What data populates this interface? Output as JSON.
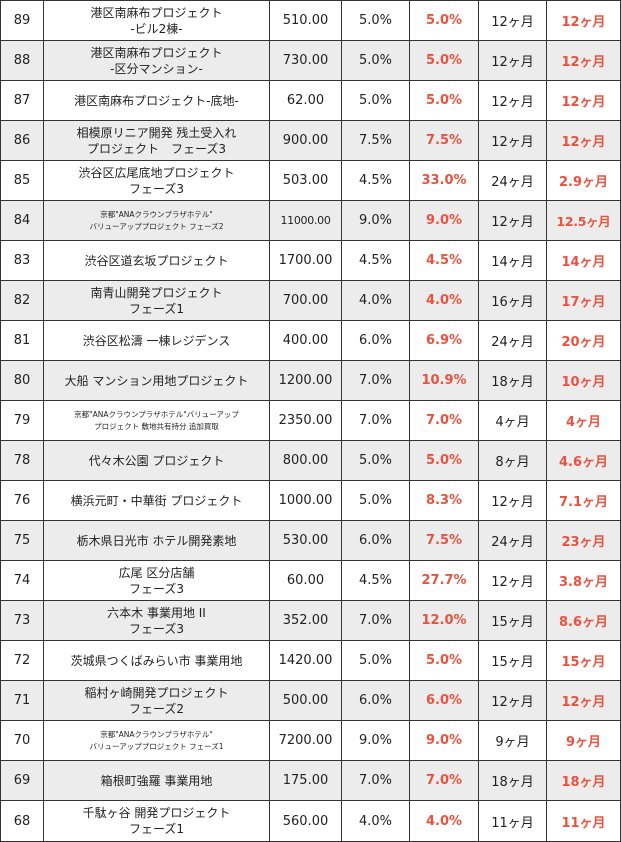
{
  "rows": [
    {
      "no": "89",
      "name": [
        "港区南麻布プロジェクト",
        "-ビル2棟-"
      ],
      "amount": "510.00",
      "rate": "5.0%",
      "yield": "5.0%",
      "term": "12ヶ月",
      "period": "12ヶ月",
      "shaded": false
    },
    {
      "no": "88",
      "name": [
        "港区南麻布プロジェクト",
        "-区分マンション-"
      ],
      "amount": "730.00",
      "rate": "5.0%",
      "yield": "5.0%",
      "term": "12ヶ月",
      "period": "12ヶ月",
      "shaded": true
    },
    {
      "no": "87",
      "name": [
        "港区南麻布プロジェクト-底地-"
      ],
      "amount": "62.00",
      "rate": "5.0%",
      "yield": "5.0%",
      "term": "12ヶ月",
      "period": "12ヶ月",
      "shaded": false
    },
    {
      "no": "86",
      "name": [
        "相模原リニア開発 残土受入れ",
        "プロジェクト　フェーズ3"
      ],
      "amount": "900.00",
      "rate": "7.5%",
      "yield": "7.5%",
      "term": "12ヶ月",
      "period": "12ヶ月",
      "shaded": true
    },
    {
      "no": "85",
      "name": [
        "渋谷区広尾底地プロジェクト",
        "フェーズ3"
      ],
      "amount": "503.00",
      "rate": "4.5%",
      "yield": "33.0%",
      "term": "24ヶ月",
      "period": "2.9ヶ月",
      "shaded": false
    },
    {
      "no": "84",
      "name": [
        "京都\"ANAクラウンプラザホテル\"",
        "バリューアッププロジェクト フェーズ2"
      ],
      "small": true,
      "amount": "11000.00",
      "rate": "9.0%",
      "yield": "9.0%",
      "term": "12ヶ月",
      "period": "12.5ヶ月",
      "shaded": true
    },
    {
      "no": "83",
      "name": [
        "渋谷区道玄坂プロジェクト"
      ],
      "amount": "1700.00",
      "rate": "4.5%",
      "yield": "4.5%",
      "term": "14ヶ月",
      "period": "14ヶ月",
      "shaded": false
    },
    {
      "no": "82",
      "name": [
        "南青山開発プロジェクト",
        "フェーズ1"
      ],
      "amount": "700.00",
      "rate": "4.0%",
      "yield": "4.0%",
      "term": "16ヶ月",
      "period": "17ヶ月",
      "shaded": true
    },
    {
      "no": "81",
      "name": [
        "渋谷区松濤 一棟レジデンス"
      ],
      "amount": "400.00",
      "rate": "6.0%",
      "yield": "6.9%",
      "term": "24ヶ月",
      "period": "20ヶ月",
      "shaded": false
    },
    {
      "no": "80",
      "name": [
        "大船 マンション用地プロジェクト"
      ],
      "amount": "1200.00",
      "rate": "7.0%",
      "yield": "10.9%",
      "term": "18ヶ月",
      "period": "10ヶ月",
      "shaded": true
    },
    {
      "no": "79",
      "name": [
        "京都\"ANAクラウンプラザホテル\"バリューアップ",
        "プロジェクト 敷地共有持分 追加買取"
      ],
      "small": true,
      "amount": "2350.00",
      "rate": "7.0%",
      "yield": "7.0%",
      "term": "4ヶ月",
      "period": "4ヶ月",
      "shaded": false
    },
    {
      "no": "78",
      "name": [
        "代々木公園 プロジェクト"
      ],
      "amount": "800.00",
      "rate": "5.0%",
      "yield": "5.0%",
      "term": "8ヶ月",
      "period": "4.6ヶ月",
      "shaded": true
    },
    {
      "no": "76",
      "name": [
        "横浜元町・中華街 プロジェクト"
      ],
      "amount": "1000.00",
      "rate": "5.0%",
      "yield": "8.3%",
      "term": "12ヶ月",
      "period": "7.1ヶ月",
      "shaded": false
    },
    {
      "no": "75",
      "name": [
        "栃木県日光市 ホテル開発素地"
      ],
      "amount": "530.00",
      "rate": "6.0%",
      "yield": "7.5%",
      "term": "24ヶ月",
      "period": "23ヶ月",
      "shaded": true
    },
    {
      "no": "74",
      "name": [
        "広尾 区分店舗",
        "フェーズ3"
      ],
      "amount": "60.00",
      "rate": "4.5%",
      "yield": "27.7%",
      "term": "12ヶ月",
      "period": "3.8ヶ月",
      "shaded": false
    },
    {
      "no": "73",
      "name": [
        "六本木 事業用地 II",
        "フェーズ3"
      ],
      "amount": "352.00",
      "rate": "7.0%",
      "yield": "12.0%",
      "term": "15ヶ月",
      "period": "8.6ヶ月",
      "shaded": true
    },
    {
      "no": "72",
      "name": [
        "茨城県つくばみらい市 事業用地"
      ],
      "amount": "1420.00",
      "rate": "5.0%",
      "yield": "5.0%",
      "term": "15ヶ月",
      "period": "15ヶ月",
      "shaded": false
    },
    {
      "no": "71",
      "name": [
        "稲村ヶ崎開発プロジェクト",
        "フェーズ2"
      ],
      "amount": "500.00",
      "rate": "6.0%",
      "yield": "6.0%",
      "term": "12ヶ月",
      "period": "12ヶ月",
      "shaded": true
    },
    {
      "no": "70",
      "name": [
        "京都\"ANAクラウンプラザホテル\"",
        "バリューアッププロジェクト フェーズ1"
      ],
      "small": true,
      "amount": "7200.00",
      "rate": "9.0%",
      "yield": "9.0%",
      "term": "9ヶ月",
      "period": "9ヶ月",
      "shaded": false
    },
    {
      "no": "69",
      "name": [
        "箱根町強羅 事業用地"
      ],
      "amount": "175.00",
      "rate": "7.0%",
      "yield": "7.0%",
      "term": "18ヶ月",
      "period": "18ヶ月",
      "shaded": true
    },
    {
      "no": "68",
      "name": [
        "千駄ヶ谷 開発プロジェクト",
        "フェーズ1"
      ],
      "amount": "560.00",
      "rate": "4.0%",
      "yield": "4.0%",
      "term": "11ヶ月",
      "period": "11ヶ月",
      "shaded": false
    }
  ]
}
